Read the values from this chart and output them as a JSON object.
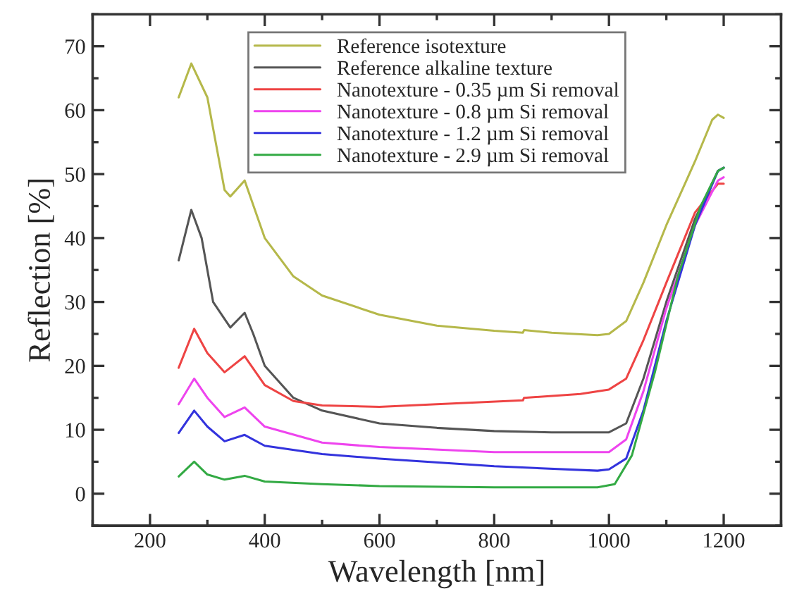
{
  "chart_data": {
    "type": "line",
    "xlabel": "Wavelength [nm]",
    "ylabel": "Reflection [%]",
    "xlim": [
      100,
      1300
    ],
    "xticks": [
      200,
      400,
      600,
      800,
      1000,
      1200
    ],
    "ylim": [
      -5,
      75
    ],
    "yticks": [
      0,
      10,
      20,
      30,
      40,
      50,
      60,
      70
    ],
    "grid": false,
    "legend": "top",
    "marker": "none",
    "line_style": "solid",
    "series": [
      {
        "name": "Reference isotexture",
        "color": "#b5b84a",
        "x": [
          250,
          272,
          300,
          330,
          340,
          365,
          400,
          450,
          500,
          600,
          700,
          800,
          850,
          852,
          900,
          980,
          1000,
          1030,
          1060,
          1100,
          1150,
          1180,
          1190,
          1200
        ],
        "values": [
          62,
          67.3,
          62,
          47.5,
          46.5,
          49,
          40,
          34,
          31,
          28,
          26.3,
          25.5,
          25.2,
          25.6,
          25.2,
          24.8,
          25,
          27,
          33,
          42,
          52,
          58.5,
          59.3,
          58.8
        ]
      },
      {
        "name": "Reference alkaline texture",
        "color": "#555555",
        "x": [
          250,
          272,
          290,
          310,
          340,
          365,
          380,
          400,
          450,
          500,
          600,
          700,
          800,
          900,
          1000,
          1030,
          1060,
          1100,
          1150,
          1190,
          1200
        ],
        "values": [
          36.5,
          44.4,
          40,
          30,
          26,
          28.3,
          25,
          20,
          15,
          13,
          11,
          10.3,
          9.8,
          9.6,
          9.6,
          11,
          18,
          30,
          43,
          50.5,
          51
        ]
      },
      {
        "name": "Nanotexture - 0.35 µm Si removal",
        "color": "#ee4444",
        "x": [
          250,
          277,
          300,
          330,
          365,
          400,
          450,
          500,
          600,
          700,
          850,
          852,
          950,
          1000,
          1030,
          1060,
          1100,
          1150,
          1190,
          1200
        ],
        "values": [
          19.7,
          25.8,
          22,
          19,
          21.5,
          17,
          14.5,
          13.8,
          13.6,
          14,
          14.6,
          15,
          15.6,
          16.3,
          18,
          24,
          33,
          44,
          48.5,
          48.5
        ]
      },
      {
        "name": "Nanotexture - 0.8 µm Si removal",
        "color": "#ee44ee",
        "x": [
          250,
          277,
          300,
          330,
          365,
          400,
          500,
          600,
          800,
          1000,
          1030,
          1060,
          1100,
          1150,
          1190,
          1200
        ],
        "values": [
          14,
          18,
          15,
          12,
          13.5,
          10.5,
          8,
          7.3,
          6.5,
          6.5,
          8.5,
          16,
          29,
          42,
          49,
          49.5
        ]
      },
      {
        "name": "Nanotexture - 1.2 µm Si removal",
        "color": "#3333dd",
        "x": [
          250,
          277,
          300,
          330,
          365,
          400,
          500,
          600,
          800,
          980,
          1000,
          1030,
          1060,
          1100,
          1150,
          1190,
          1200
        ],
        "values": [
          9.5,
          13,
          10.5,
          8.2,
          9.2,
          7.5,
          6.2,
          5.5,
          4.3,
          3.6,
          3.8,
          5.5,
          13,
          27,
          42,
          50.5,
          51
        ]
      },
      {
        "name": "Nanotexture - 2.9 µm Si removal",
        "color": "#33aa44",
        "x": [
          250,
          277,
          300,
          330,
          365,
          400,
          500,
          600,
          800,
          980,
          1010,
          1040,
          1080,
          1120,
          1160,
          1190,
          1200
        ],
        "values": [
          2.7,
          5,
          3,
          2.2,
          2.8,
          1.9,
          1.5,
          1.2,
          1,
          1,
          1.5,
          6,
          19,
          34,
          45,
          50.5,
          51
        ]
      }
    ]
  }
}
